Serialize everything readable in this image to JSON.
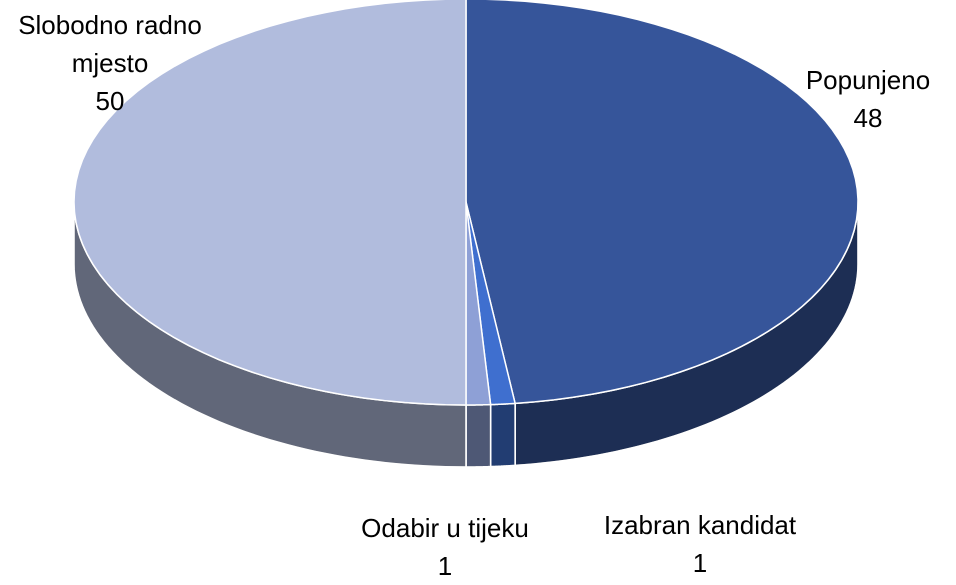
{
  "chart_data": {
    "type": "pie3d",
    "categories": [
      "Popunjeno",
      "Izabran kandidat",
      "Odabir u tijeku",
      "Slobodno radno mjesto"
    ],
    "values": [
      48,
      1,
      1,
      50
    ],
    "colors": [
      "#36559a",
      "#3f6fcf",
      "#8ea0d6",
      "#b1bcdd"
    ]
  }
}
